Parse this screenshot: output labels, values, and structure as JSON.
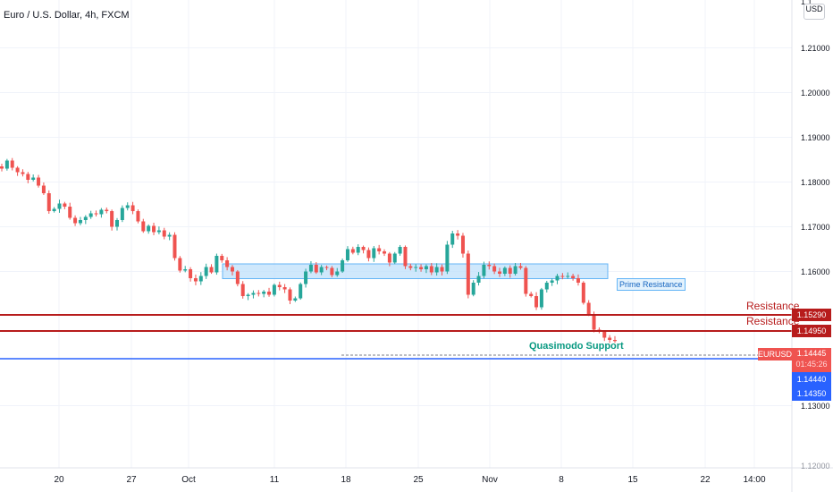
{
  "header": {
    "title": "Euro / U.S. Dollar, 4h, FXCM",
    "currency": "USD"
  },
  "y_axis": {
    "ticks": [
      "1.21000",
      "1.20000",
      "1.19000",
      "1.18000",
      "1.17000",
      "1.16000",
      "1.13000"
    ],
    "tick_values": [
      1.21,
      1.2,
      1.19,
      1.18,
      1.17,
      1.16,
      1.13
    ]
  },
  "x_axis": {
    "ticks": [
      "20",
      "27",
      "Oct",
      "11",
      "18",
      "25",
      "Nov",
      "8",
      "15",
      "22",
      "14:00"
    ]
  },
  "annotations": {
    "prime_resistance": "Prime Resistance",
    "resistance_1": "Resistance",
    "resistance_2": "Resistance",
    "quasimodo": "Quasimodo Support"
  },
  "price_tags": {
    "resistance_1": "1.15290",
    "resistance_2": "1.14950",
    "symbol": "EURUSD",
    "last_price": "1.14445",
    "countdown": "01:45:26",
    "support_1": "1.14440",
    "support_2": "1.14350"
  },
  "colors": {
    "up_candle": "#26a69a",
    "down_candle": "#ef5350",
    "resistance_line": "#b71c1c",
    "support_line": "#2962ff",
    "zone_fill": "#bbdefb",
    "zone_border": "#64b5f6",
    "quasimodo_text": "#089981",
    "grid": "#f0f3fa"
  },
  "chart_data": {
    "type": "candlestick",
    "symbol": "EURUSD",
    "timeframe": "4h",
    "ylim": [
      1.1195,
      1.2195
    ],
    "grid": true,
    "levels": [
      {
        "name": "Resistance",
        "value": 1.1529
      },
      {
        "name": "Resistance",
        "value": 1.1495
      },
      {
        "name": "Quasimodo Support",
        "value": 1.1444
      },
      {
        "value": 1.1435
      }
    ],
    "zone": {
      "name": "Prime Resistance",
      "low": 1.1584,
      "high": 1.1617
    },
    "last_price": 1.14445,
    "close_path": [
      1.183,
      1.1848,
      1.1832,
      1.1822,
      1.1818,
      1.1805,
      1.181,
      1.1792,
      1.1775,
      1.1735,
      1.174,
      1.1752,
      1.1745,
      1.172,
      1.1708,
      1.1715,
      1.1722,
      1.173,
      1.1728,
      1.1738,
      1.1735,
      1.17,
      1.1715,
      1.1742,
      1.1748,
      1.1735,
      1.1712,
      1.169,
      1.1702,
      1.1688,
      1.1692,
      1.1678,
      1.1682,
      1.163,
      1.1602,
      1.1605,
      1.1585,
      1.1578,
      1.159,
      1.161,
      1.1598,
      1.1635,
      1.1625,
      1.161,
      1.16,
      1.1572,
      1.1545,
      1.1548,
      1.1552,
      1.155,
      1.1555,
      1.1548,
      1.157,
      1.1565,
      1.156,
      1.1535,
      1.154,
      1.1572,
      1.16,
      1.1615,
      1.1598,
      1.161,
      1.1608,
      1.1592,
      1.16,
      1.1625,
      1.165,
      1.1642,
      1.1655,
      1.1648,
      1.163,
      1.1652,
      1.1645,
      1.164,
      1.162,
      1.164,
      1.1655,
      1.1612,
      1.1608,
      1.161,
      1.1605,
      1.1612,
      1.1598,
      1.161,
      1.16,
      1.166,
      1.1685,
      1.168,
      1.164,
      1.1548,
      1.1575,
      1.159,
      1.1615,
      1.1612,
      1.16,
      1.1595,
      1.1608,
      1.1595,
      1.1612,
      1.1608,
      1.155,
      1.1545,
      1.152,
      1.156,
      1.1575,
      1.158,
      1.159,
      1.1588,
      1.159,
      1.1585,
      1.1575,
      1.153,
      1.1505,
      1.147,
      1.1465,
      1.1452,
      1.1447,
      1.14445
    ]
  }
}
